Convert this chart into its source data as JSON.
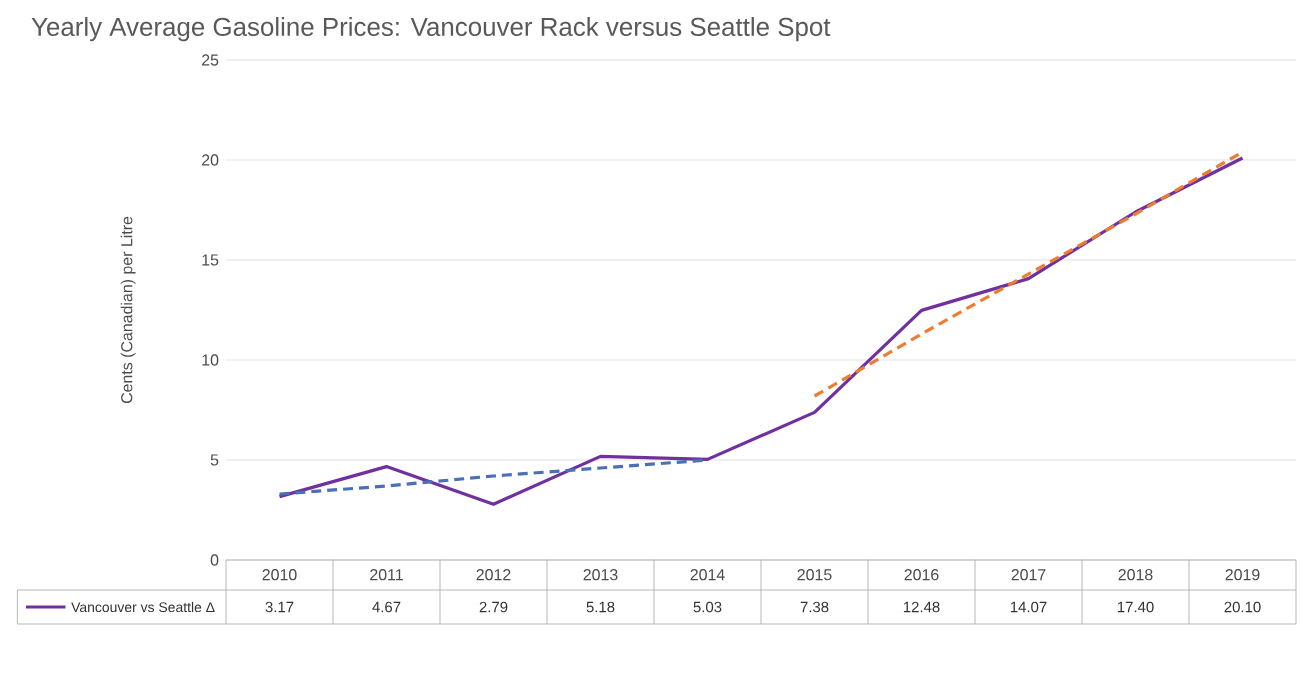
{
  "chart_data": {
    "type": "line",
    "title": "Yearly Average Gasoline Prices: Vancouver Rack versus Seattle Spot",
    "ylabel": "Cents (Canadian) per Litre",
    "categories": [
      "2010",
      "2011",
      "2012",
      "2013",
      "2014",
      "2015",
      "2016",
      "2017",
      "2018",
      "2019"
    ],
    "ylim": [
      0,
      25
    ],
    "yticks": [
      0,
      5,
      10,
      15,
      20,
      25
    ],
    "grid": "y",
    "legend": "bottom",
    "series": [
      {
        "name": "Vancouver vs Seattle Δ",
        "color": "#7030a0",
        "values": [
          3.17,
          4.67,
          2.79,
          5.18,
          5.03,
          7.38,
          12.48,
          14.07,
          17.4,
          20.1
        ],
        "value_labels": [
          "3.17",
          "4.67",
          "2.79",
          "5.18",
          "5.03",
          "7.38",
          "12.48",
          "14.07",
          "17.40",
          "20.10"
        ]
      },
      {
        "type": "line",
        "line_style": "dashed",
        "color": "#4a70b5",
        "values": [
          3.3,
          3.7,
          4.2,
          4.6,
          5.0,
          null,
          null,
          null,
          null,
          null
        ]
      },
      {
        "type": "line",
        "line_style": "dashed",
        "color": "#ed7d31",
        "values": [
          null,
          null,
          null,
          null,
          null,
          8.2,
          11.3,
          14.3,
          17.3,
          20.4
        ]
      }
    ]
  }
}
